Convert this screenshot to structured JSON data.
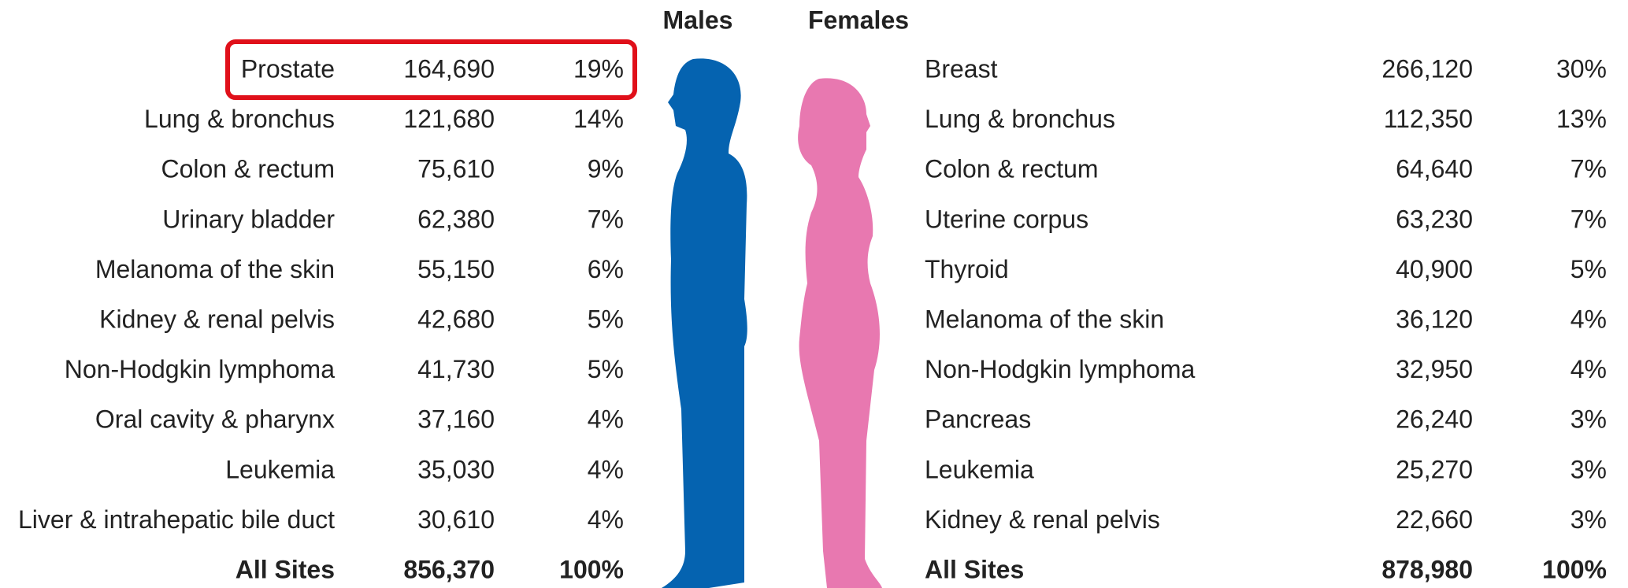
{
  "males": {
    "header": "Males",
    "rows": [
      [
        "Prostate",
        "164,690",
        "19%"
      ],
      [
        "Lung & bronchus",
        "121,680",
        "14%"
      ],
      [
        "Colon & rectum",
        "75,610",
        "9%"
      ],
      [
        "Urinary bladder",
        "62,380",
        "7%"
      ],
      [
        "Melanoma of the skin",
        "55,150",
        "6%"
      ],
      [
        "Kidney & renal pelvis",
        "42,680",
        "5%"
      ],
      [
        "Non-Hodgkin lymphoma",
        "41,730",
        "5%"
      ],
      [
        "Oral cavity & pharynx",
        "37,160",
        "4%"
      ],
      [
        "Leukemia",
        "35,030",
        "4%"
      ],
      [
        "Liver & intrahepatic bile duct",
        "30,610",
        "4%"
      ]
    ],
    "total": [
      "All Sites",
      "856,370",
      "100%"
    ]
  },
  "females": {
    "header": "Females",
    "rows": [
      [
        "Breast",
        "266,120",
        "30%"
      ],
      [
        "Lung & bronchus",
        "112,350",
        "13%"
      ],
      [
        "Colon & rectum",
        "64,640",
        "7%"
      ],
      [
        "Uterine corpus",
        "63,230",
        "7%"
      ],
      [
        "Thyroid",
        "40,900",
        "5%"
      ],
      [
        "Melanoma of the skin",
        "36,120",
        "4%"
      ],
      [
        "Non-Hodgkin lymphoma",
        "32,950",
        "4%"
      ],
      [
        "Pancreas",
        "26,240",
        "3%"
      ],
      [
        "Leukemia",
        "25,270",
        "3%"
      ],
      [
        "Kidney & renal pelvis",
        "22,660",
        "3%"
      ]
    ],
    "total": [
      "All Sites",
      "878,980",
      "100%"
    ]
  }
}
